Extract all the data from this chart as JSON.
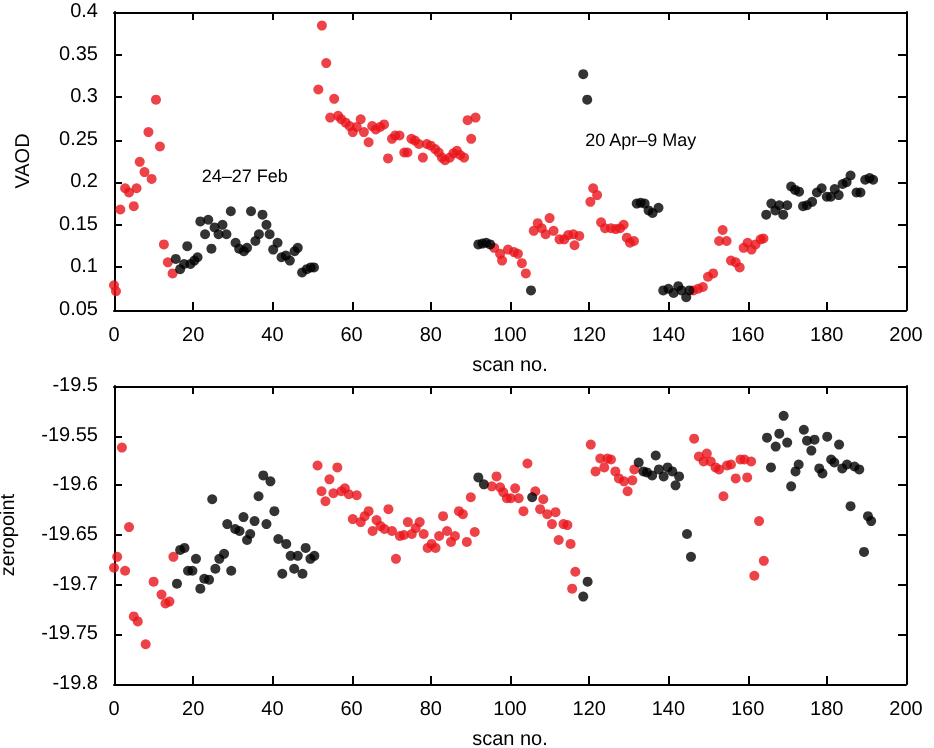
{
  "chart_data": [
    {
      "type": "scatter",
      "xlabel": "scan no.",
      "ylabel": "VAOD",
      "xlim": [
        0,
        200
      ],
      "xticks": [
        0,
        20,
        40,
        60,
        80,
        100,
        120,
        140,
        160,
        180,
        200
      ],
      "ylim": [
        0.05,
        0.4
      ],
      "yticks": [
        0.05,
        0.1,
        0.15,
        0.2,
        0.25,
        0.3,
        0.35,
        0.4
      ],
      "marker": "circle",
      "annotations": [
        "24–27 Feb",
        "20 Apr–9 May"
      ],
      "series": [
        {
          "color": "#e8141a",
          "x": [
            0,
            0.5,
            1.6,
            2.8,
            3.8,
            5,
            5.7,
            6.5,
            7.7,
            8.7,
            9.5,
            10.6,
            11.6,
            12.6,
            13.6,
            14.8,
            51.6,
            52.5,
            53.6,
            54.6,
            55.6,
            56.6,
            57.4,
            58.5,
            59.5,
            60.3,
            61.3,
            62.3,
            63.1,
            64.3,
            65.2,
            66.1,
            67.2,
            68.2,
            69.2,
            70.2,
            71,
            72.1,
            73.3,
            74.1,
            75.1,
            76,
            77,
            78,
            79,
            80,
            81.1,
            82,
            82.8,
            83.6,
            84.8,
            85.7,
            86.6,
            87.4,
            88.4,
            89.3,
            90.2,
            91.3,
            96,
            97.5,
            98,
            99.5,
            101,
            102,
            103,
            104,
            106,
            107,
            108,
            109,
            110,
            111,
            112.5,
            113.7,
            114.7,
            116,
            116.3,
            117.5,
            120.3,
            121,
            122,
            123,
            124,
            125.5,
            126.7,
            127.8,
            128.7,
            129.5,
            130.3,
            131.3,
            146.3,
            147.5,
            148.7,
            150,
            151.3,
            152.8,
            153.7,
            154.7,
            155.8,
            157,
            158,
            159,
            160,
            161,
            162,
            163.3,
            164
          ],
          "values": [
            0.079,
            0.072,
            0.168,
            0.193,
            0.188,
            0.172,
            0.193,
            0.224,
            0.212,
            0.259,
            0.204,
            0.297,
            0.242,
            0.127,
            0.106,
            0.093,
            0.309,
            0.384,
            0.34,
            0.276,
            0.298,
            0.278,
            0.274,
            0.27,
            0.266,
            0.259,
            0.265,
            0.274,
            0.259,
            0.247,
            0.266,
            0.262,
            0.265,
            0.268,
            0.228,
            0.251,
            0.255,
            0.255,
            0.235,
            0.235,
            0.251,
            0.249,
            0.245,
            0.229,
            0.245,
            0.243,
            0.239,
            0.235,
            0.229,
            0.226,
            0.229,
            0.234,
            0.237,
            0.232,
            0.229,
            0.273,
            0.251,
            0.276,
            0.123,
            0.116,
            0.108,
            0.121,
            0.118,
            0.116,
            0.105,
            0.093,
            0.143,
            0.152,
            0.146,
            0.139,
            0.158,
            0.143,
            0.133,
            0.133,
            0.138,
            0.139,
            0.126,
            0.137,
            0.177,
            0.193,
            0.185,
            0.153,
            0.146,
            0.146,
            0.145,
            0.146,
            0.15,
            0.135,
            0.129,
            0.131,
            0.073,
            0.075,
            0.077,
            0.089,
            0.093,
            0.131,
            0.144,
            0.131,
            0.108,
            0.106,
            0.1,
            0.123,
            0.129,
            0.121,
            0.127,
            0.133,
            0.134
          ]
        },
        {
          "color": "#000000",
          "x": [
            15.6,
            16.7,
            17.7,
            18.5,
            19.3,
            20.3,
            21.1,
            21.8,
            23,
            23.8,
            24.6,
            25.4,
            26.4,
            27.4,
            28.4,
            29.5,
            30.7,
            31.6,
            32.8,
            33.6,
            34.6,
            35.7,
            36.6,
            37.5,
            38.5,
            39.3,
            40.2,
            41.3,
            42.3,
            43.4,
            44.4,
            45.6,
            46.4,
            47.5,
            48.7,
            49.7,
            50.5,
            92,
            93,
            94,
            95,
            105.3,
            118.5,
            119.5,
            132,
            133,
            134,
            135,
            136,
            137.5,
            138.7,
            140,
            141.3,
            142.5,
            143.3,
            144.5,
            145.3,
            164.7,
            166,
            167,
            168,
            169,
            170,
            171,
            172,
            173,
            174,
            175,
            176.3,
            177.5,
            178.7,
            180,
            181,
            182,
            183,
            184,
            185,
            186,
            187.5,
            188.5,
            189.7,
            190.8,
            191.7
          ],
          "values": [
            0.11,
            0.098,
            0.104,
            0.125,
            0.104,
            0.108,
            0.112,
            0.154,
            0.139,
            0.156,
            0.122,
            0.147,
            0.139,
            0.15,
            0.139,
            0.166,
            0.129,
            0.122,
            0.119,
            0.123,
            0.166,
            0.131,
            0.139,
            0.162,
            0.15,
            0.139,
            0.121,
            0.129,
            0.112,
            0.114,
            0.108,
            0.119,
            0.123,
            0.094,
            0.098,
            0.1,
            0.1,
            0.127,
            0.128,
            0.129,
            0.127,
            0.073,
            0.327,
            0.297,
            0.175,
            0.176,
            0.175,
            0.167,
            0.164,
            0.17,
            0.073,
            0.075,
            0.07,
            0.078,
            0.073,
            0.065,
            0.073,
            0.162,
            0.175,
            0.167,
            0.173,
            0.162,
            0.173,
            0.195,
            0.191,
            0.189,
            0.172,
            0.173,
            0.177,
            0.188,
            0.193,
            0.183,
            0.183,
            0.192,
            0.185,
            0.198,
            0.2,
            0.208,
            0.188,
            0.188,
            0.203,
            0.205,
            0.203
          ]
        }
      ]
    },
    {
      "type": "scatter",
      "xlabel": "scan no.",
      "ylabel": "zeropoint",
      "xlim": [
        0,
        200
      ],
      "xticks": [
        0,
        20,
        40,
        60,
        80,
        100,
        120,
        140,
        160,
        180,
        200
      ],
      "ylim": [
        -19.8,
        -19.5
      ],
      "yticks": [
        -19.8,
        -19.75,
        -19.7,
        -19.65,
        -19.6,
        -19.55,
        -19.5
      ],
      "marker": "circle",
      "series": [
        {
          "color": "#e8141a",
          "x": [
            0,
            0.8,
            2,
            2.8,
            3.8,
            5,
            6,
            8,
            10,
            12,
            13,
            14,
            15,
            51.4,
            52.4,
            53.4,
            54.4,
            55.4,
            56.4,
            57.4,
            58.3,
            59.3,
            60.3,
            61.3,
            62.3,
            63.3,
            64.3,
            65.3,
            66.3,
            67.3,
            68.3,
            69.3,
            70.2,
            71.2,
            72.2,
            73.2,
            74.2,
            75.2,
            76.2,
            77.2,
            78.2,
            79.2,
            80.2,
            81.2,
            82.1,
            83.1,
            84.1,
            85.1,
            86.1,
            87.1,
            88.1,
            89.1,
            90.1,
            91.1,
            95.4,
            96.6,
            97.5,
            98.3,
            99.2,
            100.2,
            101.3,
            102.2,
            103.4,
            104.4,
            106.4,
            107.6,
            108.4,
            109.4,
            110.6,
            111.5,
            112.3,
            113.5,
            114.5,
            115.3,
            115.7,
            116.5,
            120.4,
            121.6,
            122.8,
            123.8,
            124.6,
            125.5,
            126.6,
            127.5,
            128.8,
            129.7,
            130.9,
            131.4,
            146.5,
            147.7,
            148.9,
            149.7,
            150.7,
            151.9,
            152.8,
            153.9,
            154.8,
            155.8,
            157,
            158.2,
            159.2,
            159.9,
            160.9,
            161.7,
            162.9,
            164.1
          ],
          "values": [
            -19.683,
            -19.672,
            -19.562,
            -19.686,
            -19.642,
            -19.732,
            -19.737,
            -19.76,
            -19.697,
            -19.71,
            -19.719,
            -19.717,
            -19.672,
            -19.58,
            -19.606,
            -19.616,
            -19.594,
            -19.608,
            -19.582,
            -19.606,
            -19.603,
            -19.609,
            -19.634,
            -19.61,
            -19.637,
            -19.631,
            -19.626,
            -19.646,
            -19.635,
            -19.641,
            -19.644,
            -19.624,
            -19.646,
            -19.674,
            -19.651,
            -19.65,
            -19.637,
            -19.649,
            -19.643,
            -19.637,
            -19.649,
            -19.663,
            -19.659,
            -19.663,
            -19.651,
            -19.631,
            -19.646,
            -19.657,
            -19.651,
            -19.626,
            -19.629,
            -19.657,
            -19.612,
            -19.647,
            -19.601,
            -19.591,
            -19.602,
            -19.607,
            -19.613,
            -19.613,
            -19.603,
            -19.613,
            -19.626,
            -19.578,
            -19.606,
            -19.624,
            -19.614,
            -19.629,
            -19.639,
            -19.627,
            -19.655,
            -19.639,
            -19.64,
            -19.659,
            -19.704,
            -19.687,
            -19.559,
            -19.586,
            -19.573,
            -19.582,
            -19.573,
            -19.574,
            -19.586,
            -19.593,
            -19.596,
            -19.606,
            -19.595,
            -19.584,
            -19.553,
            -19.571,
            -19.576,
            -19.568,
            -19.576,
            -19.582,
            -19.584,
            -19.611,
            -19.58,
            -19.579,
            -19.593,
            -19.574,
            -19.574,
            -19.592,
            -19.576,
            -19.691,
            -19.636,
            -19.676
          ]
        },
        {
          "color": "#000000",
          "x": [
            15.9,
            16.7,
            17.8,
            18.7,
            19.8,
            20.7,
            21.8,
            22.8,
            24,
            24.8,
            25.6,
            26.6,
            27.8,
            28.6,
            29.6,
            30.6,
            31.7,
            32.7,
            33.6,
            34.4,
            35.5,
            36.5,
            37.7,
            38.5,
            39.5,
            40.5,
            41.5,
            42.5,
            43.5,
            44.6,
            45.5,
            46.4,
            47.6,
            48.4,
            49.6,
            50.6,
            92,
            93.4,
            105.6,
            118.5,
            119.6,
            132.5,
            133.7,
            134.6,
            135.9,
            136.8,
            137.6,
            138.8,
            139.8,
            141,
            141.8,
            142.7,
            144.7,
            145.7,
            164.9,
            165.9,
            167.1,
            168,
            169.1,
            170,
            171,
            172.1,
            172.9,
            174.2,
            175,
            176.1,
            176.9,
            178.1,
            178.9,
            180.1,
            181.1,
            181.9,
            183.1,
            183.9,
            185.1,
            186,
            187,
            188.2,
            189.4,
            190.4,
            191.2
          ],
          "values": [
            -19.699,
            -19.665,
            -19.663,
            -19.686,
            -19.686,
            -19.674,
            -19.704,
            -19.694,
            -19.695,
            -19.614,
            -19.684,
            -19.674,
            -19.669,
            -19.639,
            -19.686,
            -19.644,
            -19.646,
            -19.632,
            -19.655,
            -19.649,
            -19.636,
            -19.611,
            -19.59,
            -19.639,
            -19.596,
            -19.626,
            -19.654,
            -19.689,
            -19.659,
            -19.671,
            -19.684,
            -19.671,
            -19.689,
            -19.663,
            -19.674,
            -19.671,
            -19.592,
            -19.599,
            -19.612,
            -19.712,
            -19.697,
            -19.577,
            -19.586,
            -19.587,
            -19.59,
            -19.57,
            -19.584,
            -19.591,
            -19.582,
            -19.586,
            -19.6,
            -19.591,
            -19.649,
            -19.672,
            -19.552,
            -19.582,
            -19.561,
            -19.548,
            -19.53,
            -19.557,
            -19.601,
            -19.586,
            -19.579,
            -19.544,
            -19.555,
            -19.565,
            -19.554,
            -19.583,
            -19.588,
            -19.551,
            -19.574,
            -19.577,
            -19.559,
            -19.583,
            -19.579,
            -19.621,
            -19.581,
            -19.584,
            -19.667,
            -19.631,
            -19.636
          ]
        }
      ]
    }
  ]
}
